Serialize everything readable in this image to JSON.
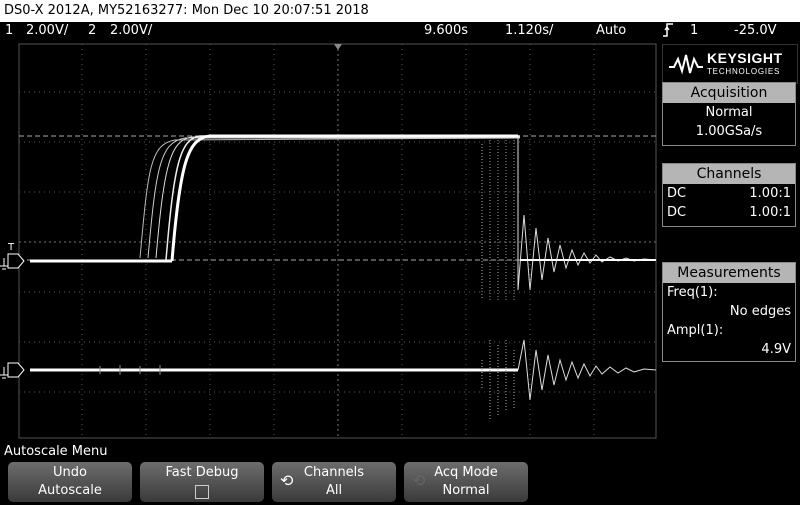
{
  "title": "DS0-X 2012A, MY52163277: Mon Dec 10 20:07:51 2018",
  "status": {
    "ch1_num": "1",
    "ch1_scale": "2.00V/",
    "ch2_num": "2",
    "ch2_scale": "2.00V/",
    "delay": "9.600s",
    "timebase": "1.120s/",
    "trigger_mode": "Auto",
    "trigger_icon": "rising-edge-icon",
    "trigger_source": "1",
    "trigger_level": "-25.0V"
  },
  "logo": {
    "brand": "KEYSIGHT",
    "sub": "TECHNOLOGIES"
  },
  "acquisition": {
    "title": "Acquisition",
    "mode": "Normal",
    "rate": "1.00GSa/s"
  },
  "channels": {
    "title": "Channels",
    "rows": [
      {
        "coupling": "DC",
        "probe": "1.00:1"
      },
      {
        "coupling": "DC",
        "probe": "1.00:1"
      }
    ]
  },
  "measurements": {
    "title": "Measurements",
    "freq_label": "Freq(1):",
    "freq_value": "No edges",
    "ampl_label": "Ampl(1):",
    "ampl_value": "4.9V"
  },
  "screen_markers": {
    "ch1": "1",
    "ch2": "2",
    "trig": "T"
  },
  "menu_title": "Autoscale Menu",
  "softkeys": {
    "undo_l1": "Undo",
    "undo_l2": "Autoscale",
    "fastdebug_l1": "Fast Debug",
    "channels_l1": "Channels",
    "channels_l2": "All",
    "acq_l1": "Acq Mode",
    "acq_l2": "Normal"
  },
  "colors": {
    "trace": "#ffffff",
    "grid": "#5a5a5a",
    "panel_header": "#b5b5b5"
  }
}
